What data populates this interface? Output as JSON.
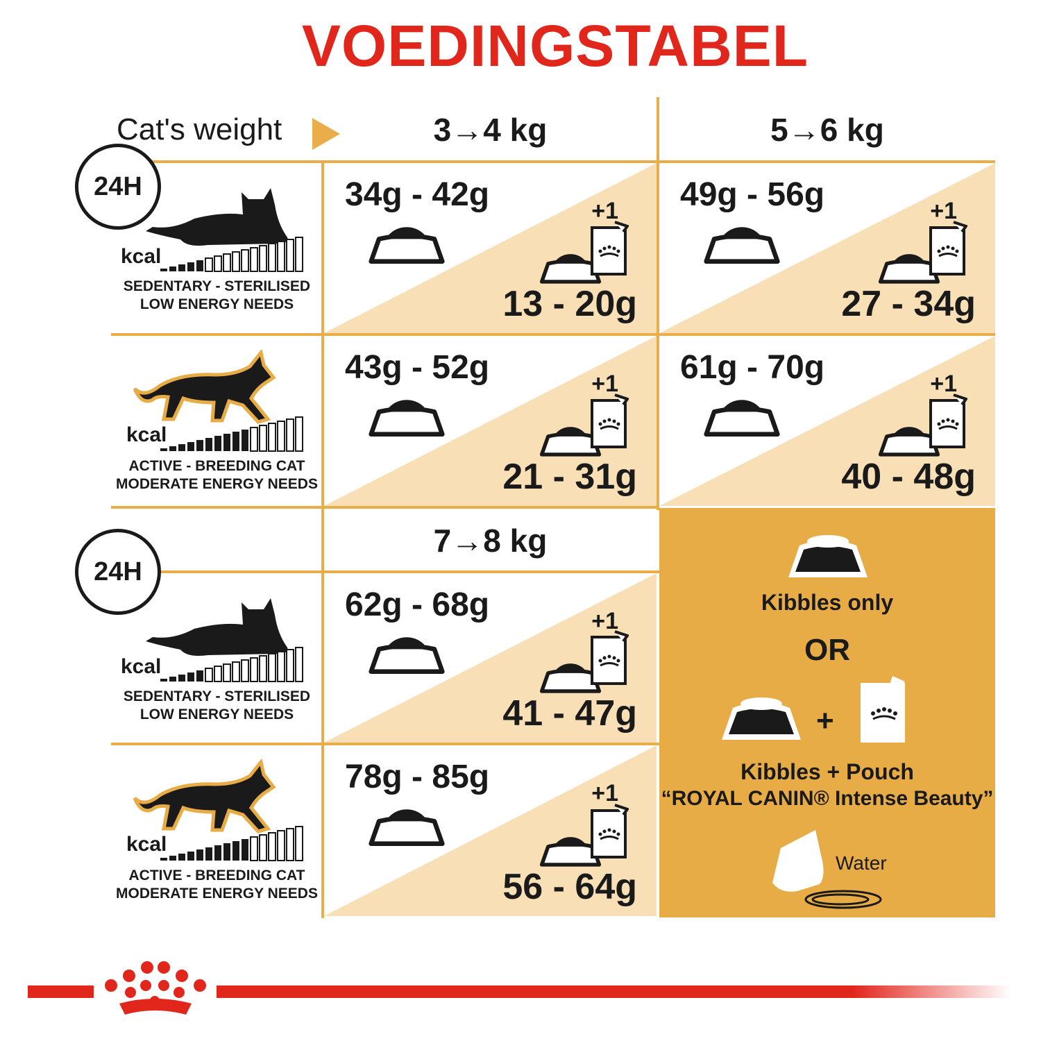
{
  "title": "VOEDINGSTABEL",
  "weight_label": "Cat's weight",
  "weights": [
    "3→4 kg",
    "5→6 kg",
    "7→8 kg"
  ],
  "profiles": {
    "sedentary": {
      "clock": "24H",
      "kcal": "kcal",
      "line1": "SEDENTARY - STERILISED",
      "line2": "LOW ENERGY NEEDS",
      "energy_level_bars_filled": 5,
      "energy_bars_total": 16
    },
    "active": {
      "kcal": "kcal",
      "line1": "ACTIVE - BREEDING CAT",
      "line2": "MODERATE ENERGY NEEDS",
      "energy_level_bars_filled": 10,
      "energy_bars_total": 16
    }
  },
  "cells": [
    {
      "weight": "3→4 kg",
      "profile": "sedentary",
      "kibbles": "34g - 42g",
      "plus": "+1",
      "mixed": "13 - 20g"
    },
    {
      "weight": "5→6 kg",
      "profile": "sedentary",
      "kibbles": "49g - 56g",
      "plus": "+1",
      "mixed": "27 - 34g"
    },
    {
      "weight": "3→4 kg",
      "profile": "active",
      "kibbles": "43g - 52g",
      "plus": "+1",
      "mixed": "21 - 31g"
    },
    {
      "weight": "5→6 kg",
      "profile": "active",
      "kibbles": "61g - 70g",
      "plus": "+1",
      "mixed": "40 - 48g"
    },
    {
      "weight": "7→8 kg",
      "profile": "sedentary",
      "kibbles": "62g - 68g",
      "plus": "+1",
      "mixed": "41 - 47g"
    },
    {
      "weight": "7→8 kg",
      "profile": "active",
      "kibbles": "78g - 85g",
      "plus": "+1",
      "mixed": "56 - 64g"
    }
  ],
  "legend": {
    "kibbles_only": "Kibbles only",
    "or": "OR",
    "plus": "+",
    "kibbles_pouch": "Kibbles + Pouch",
    "product": "“ROYAL CANIN® Intense Beauty”",
    "water": "Water"
  },
  "colors": {
    "brand_red": "#E1261C",
    "gold": "#E8AC46",
    "light_gold": "#F8DFB6"
  }
}
